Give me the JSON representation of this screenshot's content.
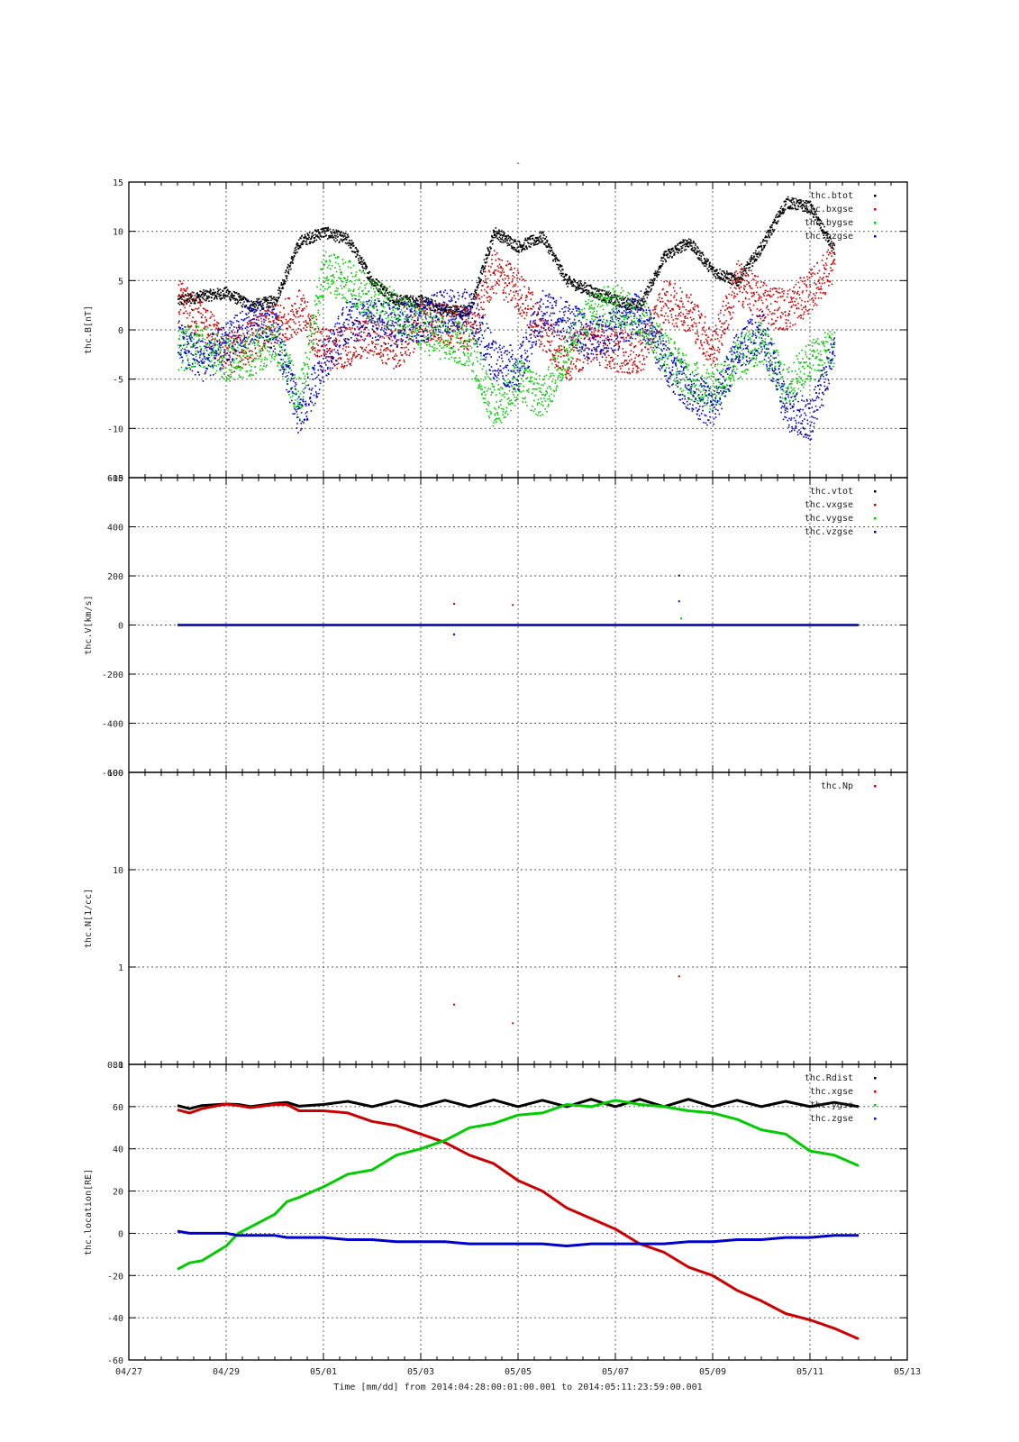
{
  "figure": {
    "title": "-",
    "time_label": "Time [mm/dd]  from 2014:04:28:00:01:00.001  to  2014:05:11:23:59:00.001"
  },
  "chart_data": [
    {
      "type": "scatter",
      "ylabel": "thc.B[nT]",
      "ylim": [
        -15,
        15
      ],
      "yscale": "linear",
      "yticks": [
        15,
        10,
        5,
        0,
        -5,
        -10,
        -15
      ],
      "xlim": [
        "04/27",
        "05/13"
      ],
      "grid": true,
      "legend_position": "top-right",
      "series": [
        {
          "name": "thc.btot",
          "color": "#000000",
          "x": [
            "04/28",
            "04/28 12h",
            "04/29",
            "04/29 12h",
            "04/30",
            "04/30 12h",
            "05/01",
            "05/01 12h",
            "05/02",
            "05/02 12h",
            "05/03",
            "05/03 12h",
            "05/04",
            "05/04 12h",
            "05/05",
            "05/05 12h",
            "05/06",
            "05/06 12h",
            "05/07",
            "05/07 12h",
            "05/08",
            "05/08 12h",
            "05/09",
            "05/09 12h",
            "05/10",
            "05/10 12h",
            "05/11",
            "05/11 12h"
          ],
          "values": [
            3.0,
            3.5,
            3.8,
            2.5,
            3.0,
            9.0,
            10.0,
            9.2,
            5.0,
            3.0,
            3.0,
            2.0,
            2.0,
            10.0,
            8.5,
            9.5,
            5.0,
            4.0,
            3.0,
            2.5,
            7.5,
            9.0,
            6.0,
            5.0,
            8.5,
            13.0,
            12.5,
            8.0
          ]
        },
        {
          "name": "thc.bxgse",
          "color": "#cc0000",
          "x": [
            "04/28",
            "04/28 12h",
            "04/29",
            "04/29 12h",
            "04/30",
            "04/30 12h",
            "05/01",
            "05/01 12h",
            "05/02",
            "05/02 12h",
            "05/03",
            "05/03 12h",
            "05/04",
            "05/04 12h",
            "05/05",
            "05/05 12h",
            "05/06",
            "05/06 12h",
            "05/07",
            "05/07 12h",
            "05/08",
            "05/08 12h",
            "05/09",
            "05/09 12h",
            "05/10",
            "05/10 12h",
            "05/11",
            "05/11 12h"
          ],
          "values": [
            3.0,
            1.0,
            -2.5,
            -1.0,
            0.5,
            2.0,
            -2.0,
            -1.5,
            -0.5,
            -2.0,
            1.0,
            0.5,
            0.0,
            6.0,
            4.0,
            0.0,
            -3.0,
            -1.0,
            -2.0,
            -2.5,
            3.0,
            2.0,
            -2.0,
            5.0,
            3.0,
            2.0,
            4.0,
            7.0
          ]
        },
        {
          "name": "thc.bygse",
          "color": "#00cc00",
          "x": [
            "04/28",
            "04/28 12h",
            "04/29",
            "04/29 12h",
            "04/30",
            "04/30 12h",
            "05/01",
            "05/01 12h",
            "05/02",
            "05/02 12h",
            "05/03",
            "05/03 12h",
            "05/04",
            "05/04 12h",
            "05/05",
            "05/05 12h",
            "05/06",
            "05/06 12h",
            "05/07",
            "05/07 12h",
            "05/08",
            "05/08 12h",
            "05/09",
            "05/09 12h",
            "05/10",
            "05/10 12h",
            "05/11",
            "05/11 12h"
          ],
          "values": [
            -2.0,
            -1.5,
            -3.0,
            -2.5,
            -1.0,
            -7.0,
            6.0,
            5.0,
            3.0,
            2.0,
            0.0,
            -1.0,
            -1.5,
            -8.0,
            -5.0,
            -7.0,
            -2.0,
            2.0,
            2.5,
            1.5,
            -2.0,
            -5.0,
            -6.0,
            -3.0,
            -1.0,
            -6.0,
            -3.0,
            -2.0
          ]
        },
        {
          "name": "thc.bzgse",
          "color": "#0000cc",
          "x": [
            "04/28",
            "04/28 12h",
            "04/29",
            "04/29 12h",
            "04/30",
            "04/30 12h",
            "05/01",
            "05/01 12h",
            "05/02",
            "05/02 12h",
            "05/03",
            "05/03 12h",
            "05/04",
            "05/04 12h",
            "05/05",
            "05/05 12h",
            "05/06",
            "05/06 12h",
            "05/07",
            "05/07 12h",
            "05/08",
            "05/08 12h",
            "05/09",
            "05/09 12h",
            "05/10",
            "05/10 12h",
            "05/11",
            "05/11 12h"
          ],
          "values": [
            -1.0,
            -3.0,
            -1.5,
            1.0,
            0.0,
            -9.0,
            -3.0,
            1.0,
            1.0,
            0.5,
            1.0,
            2.0,
            2.0,
            -3.0,
            -4.0,
            2.0,
            1.0,
            -1.0,
            0.0,
            2.0,
            -3.0,
            -6.0,
            -8.0,
            -2.0,
            0.0,
            -8.0,
            -9.0,
            -2.0
          ]
        }
      ]
    },
    {
      "type": "scatter",
      "ylabel": "thc.V[km/s]",
      "ylim": [
        -600,
        600
      ],
      "yscale": "linear",
      "yticks": [
        600,
        400,
        200,
        0,
        -200,
        -400,
        -600
      ],
      "xlim": [
        "04/27",
        "05/13"
      ],
      "grid": true,
      "legend_position": "top-right",
      "series": [
        {
          "name": "thc.vtot",
          "color": "#000000",
          "x": [
            "04/28",
            "05/12"
          ],
          "values": [
            0,
            0
          ],
          "outliers": [
            {
              "x": "05/08 07h",
              "y": 205
            }
          ]
        },
        {
          "name": "thc.vxgse",
          "color": "#cc0000",
          "x": [
            "04/28",
            "05/12"
          ],
          "values": [
            0,
            0
          ],
          "outliers": [
            {
              "x": "05/03 16h",
              "y": 90
            },
            {
              "x": "05/04 21h",
              "y": 85
            }
          ]
        },
        {
          "name": "thc.vygse",
          "color": "#00cc00",
          "x": [
            "04/28",
            "05/12"
          ],
          "values": [
            0,
            0
          ],
          "outliers": [
            {
              "x": "05/08 08h",
              "y": 30
            }
          ]
        },
        {
          "name": "thc.vzgse",
          "color": "#0000cc",
          "x": [
            "04/28",
            "05/12"
          ],
          "values": [
            0,
            0
          ],
          "outliers": [
            {
              "x": "05/03 16h",
              "y": -35
            },
            {
              "x": "05/08 07h",
              "y": 100
            }
          ]
        }
      ]
    },
    {
      "type": "scatter",
      "ylabel": "thc.N[1/cc]",
      "ylim": [
        0.1,
        100
      ],
      "yscale": "log",
      "yticks": [
        100,
        10,
        1,
        0.1
      ],
      "xlim": [
        "04/27",
        "05/13"
      ],
      "grid": true,
      "legend_position": "top-right",
      "series": [
        {
          "name": "thc.Np",
          "color": "#cc0000",
          "x": [
            "05/03 16h",
            "05/04 21h",
            "05/08 07h"
          ],
          "values": [
            0.42,
            0.27,
            0.82
          ]
        }
      ]
    },
    {
      "type": "line",
      "ylabel": "thc.location[RE]",
      "ylim": [
        -60,
        80
      ],
      "yscale": "linear",
      "yticks": [
        80,
        60,
        40,
        20,
        0,
        -20,
        -40,
        -60
      ],
      "xlim": [
        "04/27",
        "05/13"
      ],
      "grid": true,
      "legend_position": "top-right",
      "series": [
        {
          "name": "thc.Rdist",
          "color": "#000000",
          "x": [
            "04/28",
            "04/28 06h",
            "04/28 12h",
            "04/29",
            "04/29 06h",
            "04/29 12h",
            "04/30",
            "04/30 06h",
            "04/30 12h",
            "05/01",
            "05/01 12h",
            "05/02",
            "05/02 12h",
            "05/03",
            "05/03 12h",
            "05/04",
            "05/04 12h",
            "05/05",
            "05/05 12h",
            "05/06",
            "05/06 12h",
            "05/07",
            "05/07 12h",
            "05/08",
            "05/08 12h",
            "05/09",
            "05/09 12h",
            "05/10",
            "05/10 12h",
            "05/11",
            "05/11 12h",
            "05/12"
          ],
          "values": [
            60.5,
            59,
            60.5,
            61.2,
            61,
            60,
            61.5,
            62,
            60.2,
            61,
            62.5,
            60,
            62.8,
            60,
            63,
            60,
            63.2,
            60,
            63,
            60,
            63.5,
            60,
            63.5,
            60,
            63.5,
            60,
            63,
            60,
            62.5,
            60,
            62,
            60
          ]
        },
        {
          "name": "thc.xgse",
          "color": "#cc0000",
          "x": [
            "04/28",
            "04/28 06h",
            "04/28 12h",
            "04/29",
            "04/29 06h",
            "04/29 12h",
            "04/30",
            "04/30 06h",
            "04/30 12h",
            "05/01",
            "05/01 12h",
            "05/02",
            "05/02 12h",
            "05/03",
            "05/03 12h",
            "05/04",
            "05/04 12h",
            "05/05",
            "05/05 12h",
            "05/06",
            "05/06 12h",
            "05/07",
            "05/07 12h",
            "05/08",
            "05/08 12h",
            "05/09",
            "05/09 12h",
            "05/10",
            "05/10 12h",
            "05/11",
            "05/11 12h",
            "05/12"
          ],
          "values": [
            58.5,
            57,
            59,
            61.2,
            60.5,
            59.5,
            61,
            61,
            58,
            58,
            57,
            53,
            51,
            47,
            43,
            37,
            33,
            25,
            20,
            12,
            7,
            2,
            -5,
            -9,
            -16,
            -20,
            -27,
            -32,
            -38,
            -41,
            -45,
            -50
          ]
        },
        {
          "name": "thc.ygse",
          "color": "#00cc00",
          "x": [
            "04/28",
            "04/28 06h",
            "04/28 12h",
            "04/29",
            "04/29 06h",
            "04/29 12h",
            "04/30",
            "04/30 06h",
            "04/30 12h",
            "05/01",
            "05/01 12h",
            "05/02",
            "05/02 12h",
            "05/03",
            "05/03 12h",
            "05/04",
            "05/04 12h",
            "05/05",
            "05/05 12h",
            "05/06",
            "05/06 12h",
            "05/07",
            "05/07 12h",
            "05/08",
            "05/08 12h",
            "05/09",
            "05/09 12h",
            "05/10",
            "05/10 12h",
            "05/11",
            "05/11 12h",
            "05/12"
          ],
          "values": [
            -17,
            -14,
            -13,
            -6,
            0,
            3,
            9,
            15,
            17,
            22,
            28,
            30,
            37,
            40,
            44,
            50,
            52,
            56,
            57,
            61,
            60,
            63,
            61,
            60,
            58,
            57,
            54,
            49,
            47,
            39,
            37,
            32
          ]
        },
        {
          "name": "thc.zgse",
          "color": "#0000cc",
          "x": [
            "04/28",
            "04/28 06h",
            "04/28 12h",
            "04/29",
            "04/29 06h",
            "04/29 12h",
            "04/30",
            "04/30 06h",
            "04/30 12h",
            "05/01",
            "05/01 12h",
            "05/02",
            "05/02 12h",
            "05/03",
            "05/03 12h",
            "05/04",
            "05/04 12h",
            "05/05",
            "05/05 12h",
            "05/06",
            "05/06 12h",
            "05/07",
            "05/07 12h",
            "05/08",
            "05/08 12h",
            "05/09",
            "05/09 12h",
            "05/10",
            "05/10 12h",
            "05/11",
            "05/11 12h",
            "05/12"
          ],
          "values": [
            1,
            0,
            0,
            0,
            -1,
            -1,
            -1,
            -2,
            -2,
            -2,
            -3,
            -3,
            -4,
            -4,
            -4,
            -5,
            -5,
            -5,
            -5,
            -6,
            -5,
            -5,
            -5,
            -5,
            -4,
            -4,
            -3,
            -3,
            -2,
            -2,
            -1,
            -1
          ]
        }
      ]
    }
  ],
  "x_axis": {
    "ticks": [
      "04/27",
      "04/29",
      "05/01",
      "05/03",
      "05/05",
      "05/07",
      "05/09",
      "05/11",
      "05/13"
    ]
  }
}
